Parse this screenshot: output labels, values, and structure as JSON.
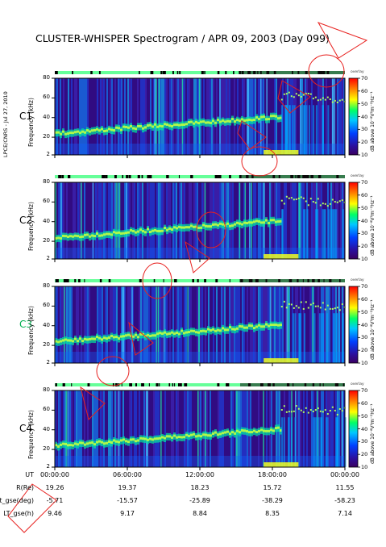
{
  "title": "CLUSTER-WHISPER Spectrogram / APR 09, 2003 (Day 099)",
  "side_note": "LPCE/CNRS - Jul 27, 2010",
  "colors": {
    "purple": "#4b0082",
    "red": "#ff0000",
    "green": "#00ff66",
    "annotation": "#e8201e"
  },
  "chart_data": {
    "type": "heatmap",
    "panels": [
      {
        "label": "C1",
        "label_color": "#000000",
        "ylabel": "Frequency (kHz)",
        "yticks": [
          "80",
          "60",
          "40",
          "20",
          "2"
        ],
        "ylim": [
          2,
          80
        ]
      },
      {
        "label": "C2",
        "label_color": "#000000",
        "ylabel": "Frequency (kHz)",
        "yticks": [
          "80",
          "60",
          "40",
          "20",
          "2"
        ],
        "ylim": [
          2,
          80
        ]
      },
      {
        "label": "C3",
        "label_color": "#00b050",
        "ylabel": "Frequency (kHz)",
        "yticks": [
          "80",
          "60",
          "40",
          "20",
          "2"
        ],
        "ylim": [
          2,
          80
        ]
      },
      {
        "label": "C4",
        "label_color": "#000000",
        "ylabel": "Frequency (kHz)",
        "yticks": [
          "80",
          "60",
          "40",
          "20",
          "2"
        ],
        "ylim": [
          2,
          80
        ]
      }
    ],
    "colorbar": {
      "label": "dB above 10⁻⁸V²m⁻²Hz⁻¹",
      "ticks": [
        "70",
        "60",
        "50",
        "40",
        "30",
        "20",
        "10"
      ],
      "range": [
        10,
        70
      ],
      "overlay": "overlay"
    },
    "x_ticks": [
      "00:00:00",
      "06:00:00",
      "12:00:00",
      "18:00:00",
      "00:00:00"
    ],
    "ephemeris": [
      {
        "label": "UT",
        "values": [
          "00:00:00",
          "06:00:00",
          "12:00:00",
          "18:00:00",
          "00:00:00"
        ]
      },
      {
        "label": "R(Re)",
        "values": [
          "19.26",
          "19.37",
          "18.23",
          "15.72",
          "11.55"
        ]
      },
      {
        "label": "Lat_gse(deg)",
        "values": [
          "-5.71",
          "-15.57",
          "-25.89",
          "-38.29",
          "-58.23"
        ]
      },
      {
        "label": "LT_gse(h)",
        "values": [
          "9.46",
          "9.17",
          "8.84",
          "8.35",
          "7.14"
        ]
      }
    ]
  }
}
